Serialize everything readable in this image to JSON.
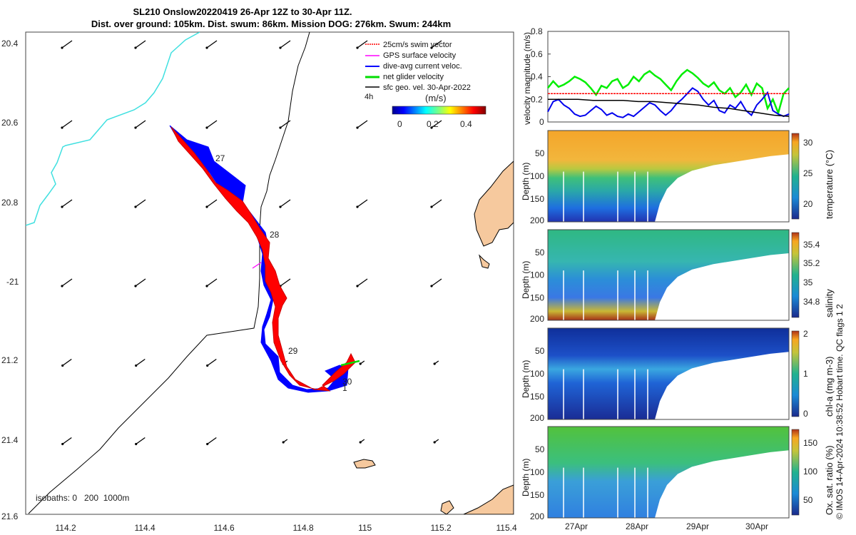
{
  "title_line1": "SL210 Onslow20220419 26-Apr 12Z to 30-Apr 11Z.",
  "title_line2": "Dist. over ground: 105km. Dist. swum: 86km. Mission DOG: 276km. Swum: 244km",
  "credit": "© IMOS 14-Apr-2024 10:38:52 Hobart time. QC flags 1  2",
  "colors": {
    "land": "#f6c99e",
    "coast": "#40e0e0",
    "fwd": "#ff0000",
    "ret": "#0000ff",
    "gps": "#ff00ff",
    "net": "#00dd00",
    "geo": "#000000"
  },
  "map": {
    "lon_range": [
      114.05,
      115.4
    ],
    "lat_range": [
      -21.6,
      -20.37
    ],
    "lon_ticks": [
      "114.2",
      "114.4",
      "114.6",
      "114.8",
      "115",
      "115.2",
      "115.4"
    ],
    "lat_ticks": [
      "20.4",
      "20.6",
      "20.8",
      "-21",
      "21.2",
      "21.4",
      "21.6"
    ],
    "day_labels": [
      "27",
      "28",
      "29",
      "30",
      "1"
    ],
    "legend": [
      "25cm/s swim vector",
      "GPS surface velocity",
      "dive-avg current veloc.",
      "net glider velocity",
      "sfc geo. vel. 30-Apr-2022"
    ],
    "legend_time": "4h",
    "colorbar_label": "(m/s)",
    "colorbar_ticks": [
      "0",
      "0.2",
      "0.4"
    ],
    "isobaths": "isobaths: 0   200  1000m"
  },
  "chart_data": [
    {
      "type": "line",
      "ylabel": "velocity magnitude (m/s)",
      "ylim": [
        0,
        0.8
      ],
      "yticks": [
        "0",
        "0.2",
        "0.4",
        "0.6",
        "0.8"
      ],
      "series": [
        {
          "color": "#00ee00",
          "values": [
            0.3,
            0.36,
            0.31,
            0.33,
            0.36,
            0.4,
            0.38,
            0.35,
            0.3,
            0.24,
            0.32,
            0.3,
            0.36,
            0.38,
            0.3,
            0.33,
            0.4,
            0.36,
            0.42,
            0.45,
            0.41,
            0.38,
            0.33,
            0.28,
            0.36,
            0.42,
            0.46,
            0.43,
            0.39,
            0.34,
            0.31,
            0.35,
            0.28,
            0.25,
            0.3,
            0.22,
            0.26,
            0.33,
            0.24,
            0.34,
            0.3,
            0.12,
            0.2,
            0.08,
            0.25,
            0.3
          ]
        },
        {
          "color": "#0000ee",
          "values": [
            0.09,
            0.18,
            0.2,
            0.15,
            0.12,
            0.07,
            0.05,
            0.06,
            0.1,
            0.14,
            0.11,
            0.06,
            0.08,
            0.05,
            0.04,
            0.07,
            0.05,
            0.09,
            0.13,
            0.17,
            0.15,
            0.1,
            0.06,
            0.1,
            0.16,
            0.2,
            0.25,
            0.3,
            0.27,
            0.2,
            0.15,
            0.19,
            0.1,
            0.08,
            0.15,
            0.12,
            0.18,
            0.1,
            0.06,
            0.15,
            0.2,
            0.26,
            0.1,
            0.07,
            0.05,
            0.07
          ]
        },
        {
          "color": "#ff0000",
          "values": [
            0.25,
            0.25
          ]
        },
        {
          "color": "#000000",
          "values": [
            0.2,
            0.2,
            0.2,
            0.19,
            0.19,
            0.19,
            0.18,
            0.18,
            0.17,
            0.16,
            0.15,
            0.13,
            0.12,
            0.1,
            0.08,
            0.06,
            0.05
          ]
        }
      ]
    },
    {
      "type": "heatmap",
      "ylabel": "Depth (m)",
      "cblabel": "temperature (°C)",
      "cbticks": [
        "30",
        "25",
        "20"
      ]
    },
    {
      "type": "heatmap",
      "ylabel": "Depth (m)",
      "cblabel": "salinity",
      "cbticks": [
        "35.4",
        "35.2",
        "35",
        "34.8"
      ]
    },
    {
      "type": "heatmap",
      "ylabel": "Depth (m)",
      "cblabel": "chl-a (mg m-3)",
      "cbticks": [
        "2",
        "1",
        "0"
      ]
    },
    {
      "type": "heatmap",
      "ylabel": "Depth (m)",
      "cblabel": "Ox. sat. ratio (%)",
      "cbticks": [
        "150",
        "100",
        "50"
      ]
    }
  ],
  "depth_ticks": [
    "50",
    "100",
    "150",
    "200"
  ],
  "time_ticks": [
    "27Apr",
    "28Apr",
    "29Apr",
    "30Apr"
  ]
}
